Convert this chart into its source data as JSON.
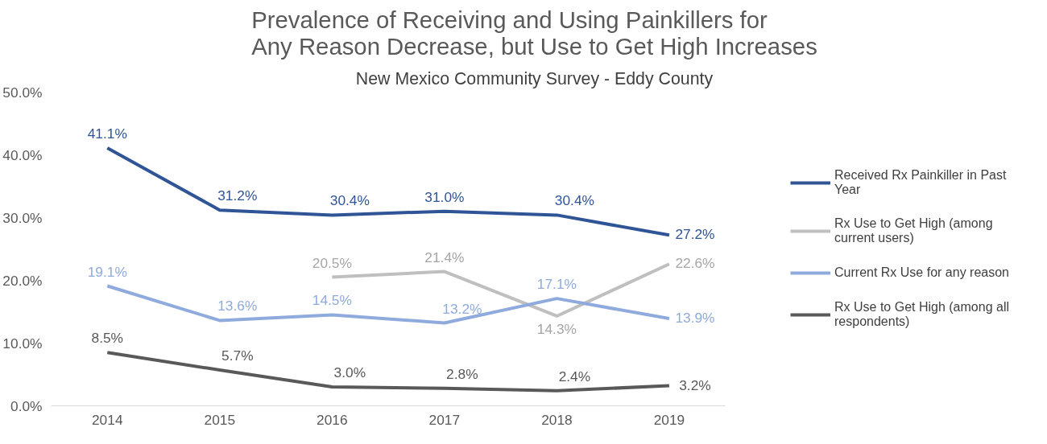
{
  "chart_data": {
    "type": "line",
    "title": "Prevalence of Receiving and Using Painkillers for Any Reason Decrease, but Use to Get High Increases",
    "subtitle": "New Mexico Community Survey - Eddy County",
    "categories": [
      "2014",
      "2015",
      "2016",
      "2017",
      "2018",
      "2019"
    ],
    "ylim": [
      0,
      50
    ],
    "yticks": [
      {
        "value": 0,
        "label": "0.0%"
      },
      {
        "value": 10,
        "label": "10.0%"
      },
      {
        "value": 20,
        "label": "20.0%"
      },
      {
        "value": 30,
        "label": "30.0%"
      },
      {
        "value": 40,
        "label": "40.0%"
      },
      {
        "value": 50,
        "label": "50.0%"
      }
    ],
    "grid": false,
    "legend": "right",
    "marker": "none",
    "line_style": "solid",
    "series": [
      {
        "name": "Received Rx Painkiller in Past Year",
        "color": "#2f5597",
        "values": [
          41.1,
          31.2,
          30.4,
          31.0,
          30.4,
          27.2
        ],
        "value_labels": [
          "41.1%",
          "31.2%",
          "30.4%",
          "31.0%",
          "30.4%",
          "27.2%"
        ]
      },
      {
        "name": "Rx Use to Get High (among current users)",
        "color": "#bfbfbf",
        "values": [
          null,
          null,
          20.5,
          21.4,
          14.3,
          22.6
        ],
        "value_labels": [
          null,
          null,
          "20.5%",
          "21.4%",
          "14.3%",
          "22.6%"
        ]
      },
      {
        "name": "Current Rx Use for any reason",
        "color": "#8faadc",
        "values": [
          19.1,
          13.6,
          14.5,
          13.2,
          17.1,
          13.9
        ],
        "value_labels": [
          "19.1%",
          "13.6%",
          "14.5%",
          "13.2%",
          "17.1%",
          "13.9%"
        ]
      },
      {
        "name": "Rx Use to Get High (among all respondents)",
        "color": "#595959",
        "values": [
          8.5,
          5.7,
          3.0,
          2.8,
          2.4,
          3.2
        ],
        "value_labels": [
          "8.5%",
          "5.7%",
          "3.0%",
          "2.8%",
          "2.4%",
          "3.2%"
        ]
      }
    ]
  }
}
